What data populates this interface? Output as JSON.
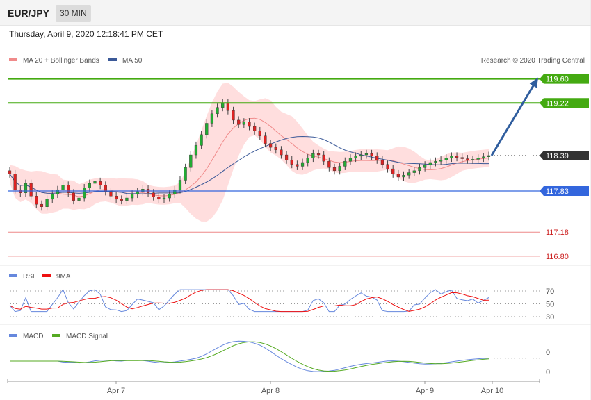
{
  "header": {
    "symbol": "EUR/JPY",
    "timeframe": "30 MIN"
  },
  "datetime": "Thursday, April 9, 2020 12:18:41 PM CET",
  "copyright": "Research © 2020 Trading Central",
  "colors": {
    "green": "#44aa11",
    "blue": "#3366dd",
    "red_level": "#ee8888",
    "candle_up": "#22aa33",
    "candle_down": "#dd2222",
    "band": "#ffd6d6",
    "ma20": "#f08a8a",
    "ma50": "#3b5998",
    "rsi": "#6688dd",
    "rsi_ma": "#ee1111",
    "macd": "#6688dd",
    "signal": "#55aa22",
    "arrow": "#2f5d9e",
    "price_tag": "#333333"
  },
  "chart_data": [
    {
      "type": "candlestick",
      "legend": [
        {
          "name": "MA 20 + Bollinger Bands",
          "color": "#f08a8a"
        },
        {
          "name": "MA 50",
          "color": "#3b5998"
        }
      ],
      "x_ticks": [
        "Apr 7",
        "Apr 8",
        "Apr 9",
        "Apr 10"
      ],
      "ylim": [
        116.7,
        119.75
      ],
      "last_price": 118.39,
      "levels": [
        {
          "value": 119.6,
          "label": "119.60",
          "kind": "resistance"
        },
        {
          "value": 119.22,
          "label": "119.22",
          "kind": "resistance"
        },
        {
          "value": 117.83,
          "label": "117.83",
          "kind": "pivot"
        },
        {
          "value": 117.18,
          "label": "117.18",
          "kind": "support"
        },
        {
          "value": 116.8,
          "label": "116.80",
          "kind": "support"
        }
      ],
      "arrow": {
        "from": 118.39,
        "to": 119.6
      },
      "close": [
        118.1,
        117.85,
        117.8,
        117.95,
        117.75,
        117.62,
        117.58,
        117.7,
        117.78,
        117.85,
        117.92,
        117.8,
        117.68,
        117.72,
        117.88,
        117.95,
        117.98,
        117.92,
        117.82,
        117.75,
        117.7,
        117.68,
        117.72,
        117.78,
        117.82,
        117.86,
        117.8,
        117.74,
        117.7,
        117.72,
        117.78,
        117.85,
        118.0,
        118.2,
        118.4,
        118.55,
        118.72,
        118.9,
        119.05,
        119.15,
        119.22,
        119.1,
        118.95,
        118.88,
        118.92,
        118.85,
        118.78,
        118.7,
        118.58,
        118.52,
        118.48,
        118.4,
        118.32,
        118.25,
        118.22,
        118.28,
        118.35,
        118.42,
        118.4,
        118.3,
        118.2,
        118.15,
        118.22,
        118.3,
        118.35,
        118.38,
        118.4,
        118.42,
        118.38,
        118.32,
        118.25,
        118.18,
        118.1,
        118.05,
        118.08,
        118.12,
        118.15,
        118.2,
        118.24,
        118.28,
        118.3,
        118.32,
        118.35,
        118.38,
        118.36,
        118.34,
        118.32,
        118.33,
        118.35,
        118.37,
        118.39
      ]
    },
    {
      "type": "line",
      "legend": [
        {
          "name": "RSI",
          "color": "#6688dd"
        },
        {
          "name": "9MA",
          "color": "#ee1111"
        }
      ],
      "y_ticks": [
        "70",
        "50",
        "30"
      ],
      "ylim": [
        25,
        75
      ]
    },
    {
      "type": "line",
      "legend": [
        {
          "name": "MACD",
          "color": "#6688dd"
        },
        {
          "name": "MACD Signal",
          "color": "#55aa22"
        }
      ],
      "y_ticks": [
        "0",
        "0"
      ]
    }
  ]
}
